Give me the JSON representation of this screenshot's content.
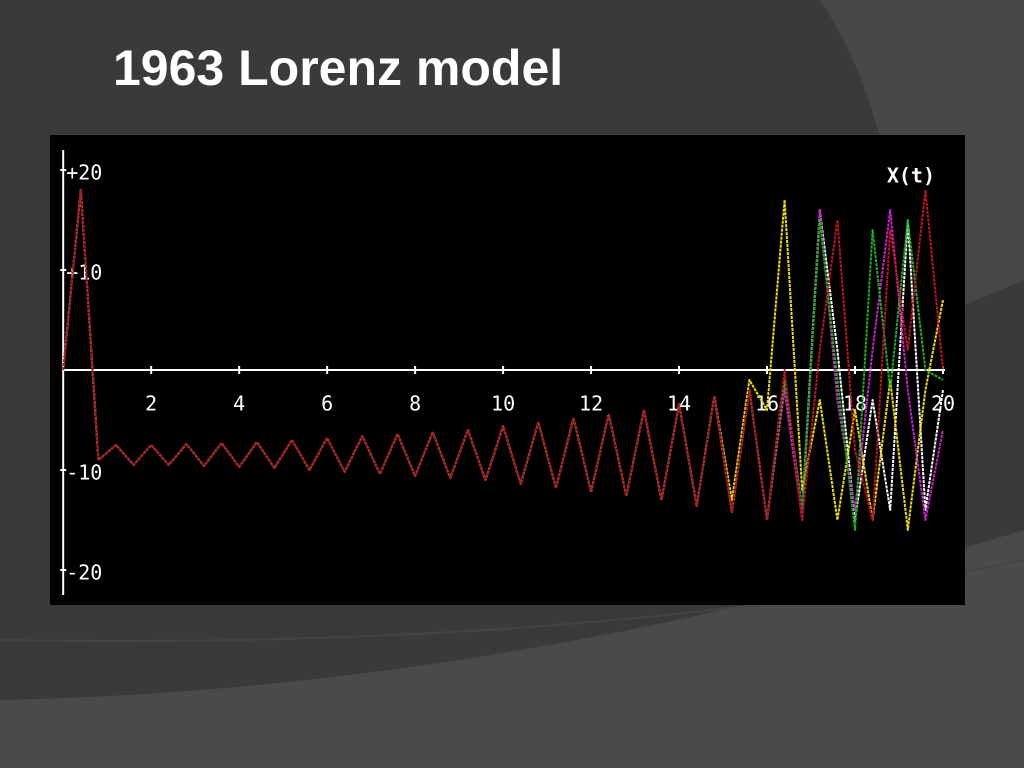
{
  "chart_data": {
    "type": "line",
    "title": "1963 Lorenz model",
    "annotation": "X(t)",
    "x": [
      0,
      0.4,
      0.8,
      1.2,
      1.6,
      2,
      2.4,
      2.8,
      3.2,
      3.6,
      4,
      4.4,
      4.8,
      5.2,
      5.6,
      6,
      6.4,
      6.8,
      7.2,
      7.6,
      8,
      8.4,
      8.8,
      9.2,
      9.6,
      10,
      10.4,
      10.8,
      11.2,
      11.6,
      12,
      12.4,
      12.8,
      13.2,
      13.6,
      14,
      14.4,
      14.8,
      15.2,
      15.6,
      16,
      16.4,
      16.8,
      17.2,
      17.6,
      18,
      18.4,
      18.8,
      19.2,
      19.6,
      20
    ],
    "series": [
      {
        "color": "#ffffff",
        "values": [
          0,
          18,
          -9,
          -7.5,
          -9.5,
          -7.5,
          -9.5,
          -7.4,
          -9.6,
          -7.3,
          -9.7,
          -7.2,
          -9.8,
          -7,
          -10,
          -6.8,
          -10.2,
          -6.6,
          -10.4,
          -6.4,
          -10.6,
          -6.2,
          -10.8,
          -6,
          -11,
          -5.6,
          -11.4,
          -5.2,
          -11.8,
          -4.8,
          -12.2,
          -4.4,
          -12.6,
          -4,
          -13,
          -3.4,
          -13.6,
          -2.6,
          -14.2,
          -2,
          -15,
          -1,
          -14,
          16,
          2,
          -15,
          -3,
          -14,
          15,
          -14,
          -2
        ]
      },
      {
        "color": "#f0e000",
        "values": [
          0,
          18,
          -9,
          -7.5,
          -9.5,
          -7.5,
          -9.5,
          -7.4,
          -9.6,
          -7.3,
          -9.7,
          -7.2,
          -9.8,
          -7,
          -10,
          -6.8,
          -10.2,
          -6.6,
          -10.4,
          -6.4,
          -10.6,
          -6.2,
          -10.8,
          -6,
          -11,
          -5.6,
          -11.4,
          -5.2,
          -11.8,
          -4.8,
          -12.2,
          -4.4,
          -12.6,
          -4,
          -13,
          -3.4,
          -13.6,
          -2.6,
          -13,
          -1,
          -4,
          17,
          -12,
          -3,
          -15,
          -4,
          -15,
          -1,
          -16,
          -2,
          7
        ]
      },
      {
        "color": "#d020d0",
        "values": [
          0,
          18,
          -9,
          -7.5,
          -9.5,
          -7.5,
          -9.5,
          -7.4,
          -9.6,
          -7.3,
          -9.7,
          -7.2,
          -9.8,
          -7,
          -10,
          -6.8,
          -10.2,
          -6.6,
          -10.4,
          -6.4,
          -10.6,
          -6.2,
          -10.8,
          -6,
          -11,
          -5.6,
          -11.4,
          -5.2,
          -11.8,
          -4.8,
          -12.2,
          -4.4,
          -12.6,
          -4,
          -13,
          -3.4,
          -13.6,
          -2.6,
          -14.2,
          -2,
          -15,
          -2,
          -15,
          16,
          -3,
          -14,
          2,
          16,
          -2,
          -15,
          -6
        ]
      },
      {
        "color": "#20b020",
        "values": [
          0,
          18,
          -9,
          -7.5,
          -9.5,
          -7.5,
          -9.5,
          -7.4,
          -9.6,
          -7.3,
          -9.7,
          -7.2,
          -9.8,
          -7,
          -10,
          -6.8,
          -10.2,
          -6.6,
          -10.4,
          -6.4,
          -10.6,
          -6.2,
          -10.8,
          -6,
          -11,
          -5.6,
          -11.4,
          -5.2,
          -11.8,
          -4.8,
          -12.2,
          -4.4,
          -12.6,
          -4,
          -13,
          -3.4,
          -13.6,
          -2.6,
          -14.2,
          -2,
          -15,
          -1,
          -14,
          15,
          -1,
          -16,
          14,
          -2,
          15,
          0,
          -1
        ]
      },
      {
        "color": "#c0141e",
        "values": [
          0,
          18,
          -9,
          -7.5,
          -9.5,
          -7.5,
          -9.5,
          -7.4,
          -9.6,
          -7.3,
          -9.7,
          -7.2,
          -9.8,
          -7,
          -10,
          -6.8,
          -10.2,
          -6.6,
          -10.4,
          -6.4,
          -10.6,
          -6.2,
          -10.8,
          -6,
          -11,
          -5.6,
          -11.4,
          -5.2,
          -11.8,
          -4.8,
          -12.2,
          -4.4,
          -12.6,
          -4,
          -13,
          -3.4,
          -13.6,
          -2.6,
          -14.2,
          -2,
          -15,
          0,
          -15,
          2,
          15,
          -8,
          -15,
          14,
          2,
          18,
          0
        ]
      }
    ],
    "xlim": [
      -0.3,
      20.5
    ],
    "ylim": [
      -23.5,
      23.5
    ],
    "xticks": [
      2,
      4,
      6,
      8,
      10,
      12,
      14,
      16,
      18,
      20
    ],
    "yticks": [
      {
        "value": 20,
        "label": "+20"
      },
      {
        "value": 10,
        "label": "+10"
      },
      -10,
      -20
    ]
  }
}
